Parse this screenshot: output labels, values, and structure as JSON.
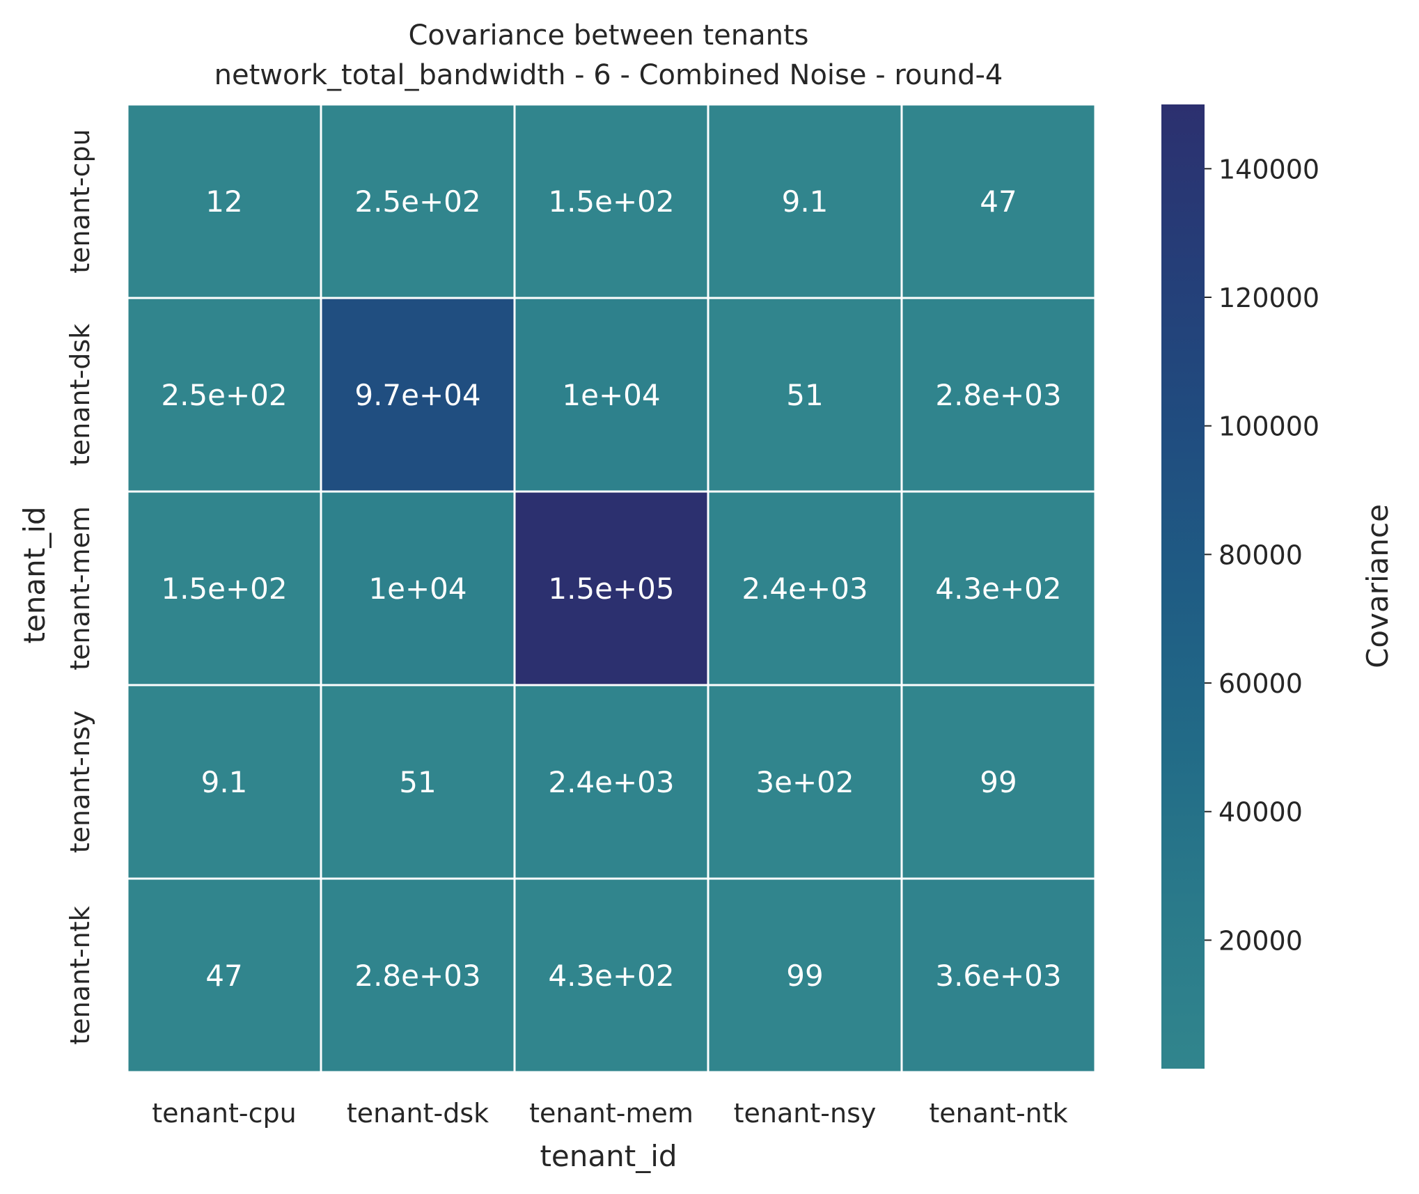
{
  "chart_data": {
    "type": "heatmap",
    "title": "Covariance between tenants",
    "subtitle": "network_total_bandwidth - 6 - Combined Noise - round-4",
    "xlabel": "tenant_id",
    "ylabel": "tenant_id",
    "x_categories": [
      "tenant-cpu",
      "tenant-dsk",
      "tenant-mem",
      "tenant-nsy",
      "tenant-ntk"
    ],
    "y_categories": [
      "tenant-cpu",
      "tenant-dsk",
      "tenant-mem",
      "tenant-nsy",
      "tenant-ntk"
    ],
    "values": [
      [
        12,
        250,
        150,
        9.1,
        47
      ],
      [
        250,
        97000,
        10000,
        51,
        2800
      ],
      [
        150,
        10000,
        150000,
        2400,
        430
      ],
      [
        9.1,
        51,
        2400,
        300,
        99
      ],
      [
        47,
        2800,
        430,
        99,
        3600
      ]
    ],
    "labels": [
      [
        "12",
        "2.5e+02",
        "1.5e+02",
        "9.1",
        "47"
      ],
      [
        "2.5e+02",
        "9.7e+04",
        "1e+04",
        "51",
        "2.8e+03"
      ],
      [
        "1.5e+02",
        "1e+04",
        "1.5e+05",
        "2.4e+03",
        "4.3e+02"
      ],
      [
        "9.1",
        "51",
        "2.4e+03",
        "3e+02",
        "99"
      ],
      [
        "47",
        "2.8e+03",
        "4.3e+02",
        "99",
        "3.6e+03"
      ]
    ],
    "colorbar": {
      "label": "Covariance",
      "range": [
        9.1,
        150000
      ],
      "ticks": [
        20000,
        40000,
        60000,
        80000,
        100000,
        120000,
        140000
      ],
      "colors": [
        "#31858d",
        "#2a7a8a",
        "#226b87",
        "#1f5c84",
        "#204c7f",
        "#253e78",
        "#2c306f"
      ]
    },
    "grid": "white cell borders"
  }
}
